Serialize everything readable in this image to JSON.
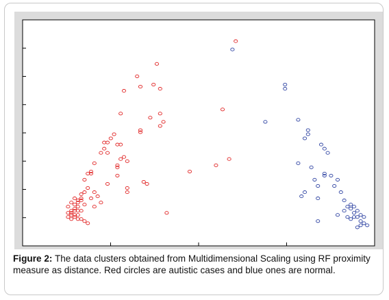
{
  "caption": {
    "label": "Figure 2:",
    "text": "The data clusters obtained from Multidimensional Scaling using RF proximity measure as distance. Red circles are autistic cases and blue ones are normal."
  },
  "chart_data": {
    "type": "scatter",
    "grid": false,
    "legend": "none",
    "xlim": [
      0,
      100
    ],
    "ylim": [
      0,
      100
    ],
    "series": [
      {
        "color": "#e02020",
        "marker": "open-circle",
        "points": [
          [
            59,
            95
          ],
          [
            35,
            84
          ],
          [
            29,
            78
          ],
          [
            34,
            74
          ],
          [
            30,
            73
          ],
          [
            36,
            72
          ],
          [
            25,
            71
          ],
          [
            55,
            62
          ],
          [
            36,
            60
          ],
          [
            33,
            58
          ],
          [
            24,
            60
          ],
          [
            37,
            56
          ],
          [
            30,
            52
          ],
          [
            30,
            51
          ],
          [
            36,
            54
          ],
          [
            22,
            50
          ],
          [
            21,
            48
          ],
          [
            20,
            46
          ],
          [
            23,
            45
          ],
          [
            24,
            45
          ],
          [
            19,
            43
          ],
          [
            18,
            41
          ],
          [
            20,
            41
          ],
          [
            25,
            39
          ],
          [
            24,
            38
          ],
          [
            26,
            37
          ],
          [
            16,
            36
          ],
          [
            23,
            35
          ],
          [
            23,
            34
          ],
          [
            53,
            35
          ],
          [
            45,
            32
          ],
          [
            57,
            38
          ],
          [
            15,
            32
          ],
          [
            14,
            31
          ],
          [
            15,
            31
          ],
          [
            13,
            28
          ],
          [
            31,
            27
          ],
          [
            20,
            26
          ],
          [
            14,
            24
          ],
          [
            26,
            22
          ],
          [
            13,
            22
          ],
          [
            12,
            21
          ],
          [
            16,
            22
          ],
          [
            17,
            20
          ],
          [
            10,
            19
          ],
          [
            15,
            19
          ],
          [
            11,
            18
          ],
          [
            12,
            18
          ],
          [
            18,
            17
          ],
          [
            9,
            17
          ],
          [
            10,
            16
          ],
          [
            11,
            15
          ],
          [
            13,
            16
          ],
          [
            8,
            15
          ],
          [
            9,
            13
          ],
          [
            10,
            13
          ],
          [
            11,
            13
          ],
          [
            12,
            13
          ],
          [
            8,
            12
          ],
          [
            9,
            11
          ],
          [
            10,
            11
          ],
          [
            11,
            11
          ],
          [
            8,
            10
          ],
          [
            9,
            9
          ],
          [
            10,
            10
          ],
          [
            11,
            9
          ],
          [
            12,
            9
          ],
          [
            13,
            8
          ],
          [
            14,
            7
          ],
          [
            38,
            12
          ],
          [
            11,
            17
          ],
          [
            16,
            15
          ],
          [
            26,
            24
          ],
          [
            12,
            19
          ],
          [
            23,
            30
          ],
          [
            19,
            46
          ],
          [
            32,
            26
          ],
          [
            10,
            14
          ],
          [
            9,
            12
          ]
        ]
      },
      {
        "color": "#2a3fa0",
        "marker": "open-circle",
        "points": [
          [
            58,
            91
          ],
          [
            74,
            74
          ],
          [
            74,
            72
          ],
          [
            68,
            56
          ],
          [
            78,
            57
          ],
          [
            81,
            52
          ],
          [
            81,
            50
          ],
          [
            80,
            48
          ],
          [
            85,
            45
          ],
          [
            86,
            43
          ],
          [
            87,
            41
          ],
          [
            78,
            36
          ],
          [
            82,
            34
          ],
          [
            86,
            31
          ],
          [
            86,
            30
          ],
          [
            88,
            30
          ],
          [
            83,
            28
          ],
          [
            90,
            28
          ],
          [
            84,
            25
          ],
          [
            89,
            25
          ],
          [
            80,
            22
          ],
          [
            79,
            20
          ],
          [
            84,
            19
          ],
          [
            91,
            22
          ],
          [
            92,
            18
          ],
          [
            93,
            15
          ],
          [
            94,
            14
          ],
          [
            95,
            15
          ],
          [
            96,
            13
          ],
          [
            95,
            12
          ],
          [
            97,
            11
          ],
          [
            96,
            10
          ],
          [
            98,
            10
          ],
          [
            97,
            8
          ],
          [
            98,
            7
          ],
          [
            99,
            6
          ],
          [
            97,
            6
          ],
          [
            96,
            5
          ],
          [
            94,
            9
          ],
          [
            93,
            10
          ],
          [
            90,
            11
          ],
          [
            92,
            13
          ],
          [
            84,
            8
          ],
          [
            94,
            16
          ],
          [
            95,
            10
          ]
        ]
      }
    ]
  }
}
